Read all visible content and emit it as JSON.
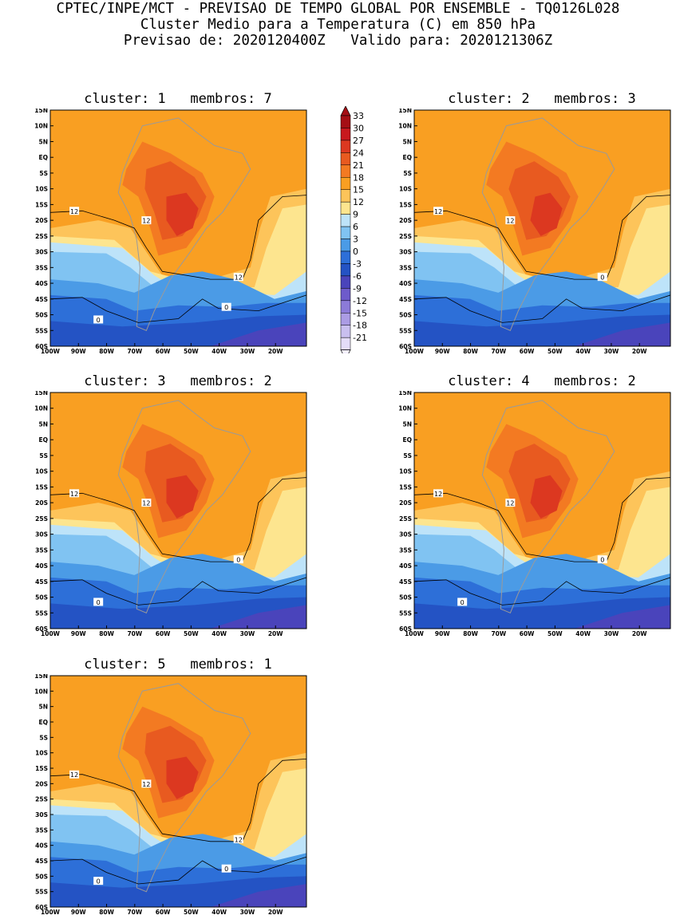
{
  "header": {
    "line1": "CPTEC/INPE/MCT - PREVISAO DE TEMPO GLOBAL POR ENSEMBLE - TQ0126L028",
    "line2": "Cluster Medio para a Temperatura (C) em 850 hPa",
    "line3": "Previsao de: 2020120400Z   Valido para: 2020121306Z"
  },
  "lat_labels": [
    "15N",
    "10N",
    "5N",
    "EQ",
    "5S",
    "10S",
    "15S",
    "20S",
    "25S",
    "30S",
    "35S",
    "40S",
    "45S",
    "50S",
    "55S",
    "60S"
  ],
  "lon_labels": [
    "100W",
    "90W",
    "80W",
    "70W",
    "60W",
    "50W",
    "40W",
    "30W",
    "20W"
  ],
  "colorbar": {
    "levels": [
      "33",
      "30",
      "27",
      "24",
      "21",
      "18",
      "15",
      "12",
      "9",
      "6",
      "3",
      "0",
      "-3",
      "-6",
      "-9",
      "-12",
      "-15",
      "-18",
      "-21"
    ],
    "colors": [
      "#a50f15",
      "#c8181e",
      "#dc3820",
      "#e85a20",
      "#f37a22",
      "#f99f22",
      "#fdc45a",
      "#fde58f",
      "#bde3f9",
      "#80c3f2",
      "#4b9be6",
      "#2d6fd8",
      "#2453c4",
      "#4a44bb",
      "#6e5bcb",
      "#8c7bd8",
      "#ab9ce4",
      "#c9bfef",
      "#e4dcf8"
    ]
  },
  "panels": [
    {
      "title": "cluster: 1   membros: 7",
      "contour_labels": [
        "12",
        "12",
        "12",
        "0",
        "0"
      ]
    },
    {
      "title": "cluster: 2   membros: 3",
      "contour_labels": [
        "12",
        "12",
        "0"
      ]
    },
    {
      "title": "cluster: 3   membros: 2",
      "contour_labels": [
        "12",
        "12",
        "0",
        "0"
      ]
    },
    {
      "title": "cluster: 4   membros: 2",
      "contour_labels": [
        "12",
        "12",
        "0",
        "0"
      ]
    },
    {
      "title": "cluster: 5   membros: 1",
      "contour_labels": [
        "12",
        "12",
        "12",
        "0",
        "0"
      ]
    }
  ]
}
